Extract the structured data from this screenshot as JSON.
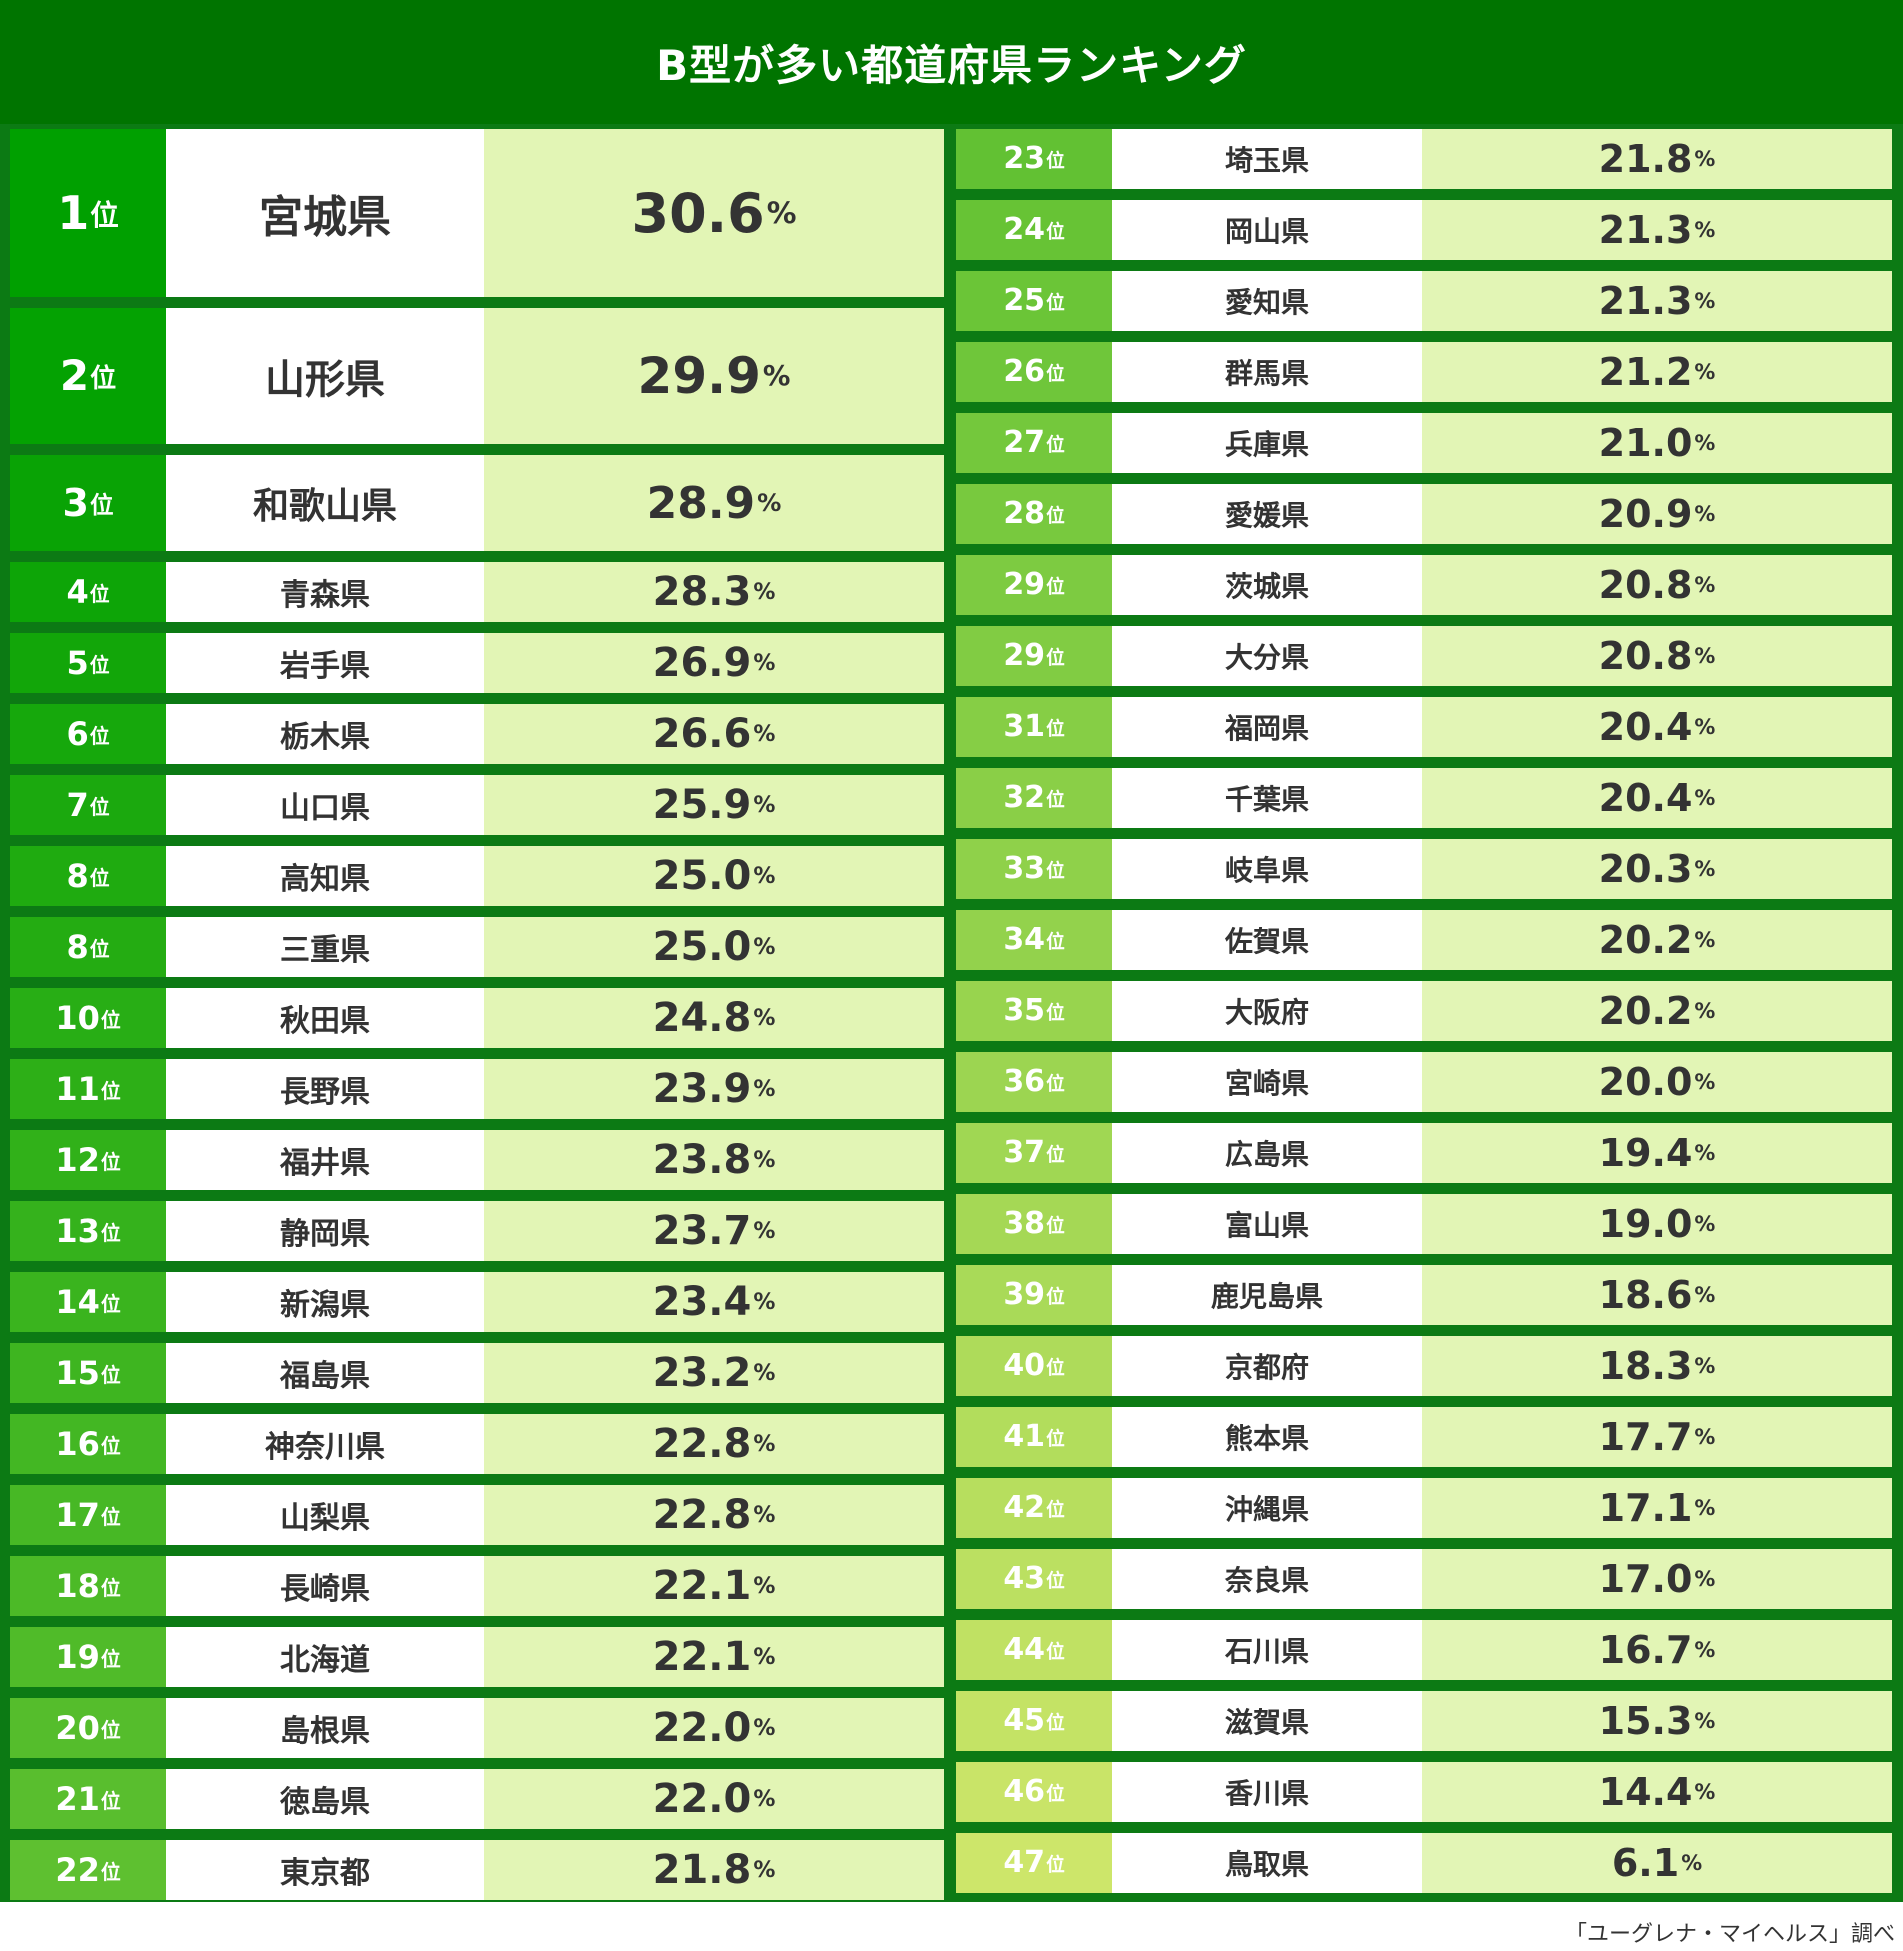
{
  "title": "B型が多い都道府県ランキング",
  "source": "「ユーグレナ・マイヘルス」調べ",
  "rank_unit": "位",
  "percent_unit": "%",
  "colors": {
    "header": "#007400",
    "rank_top": "#00a000",
    "rank_bottom": "#cde66a",
    "value_bg": "#e2f5b5"
  },
  "rankings": [
    {
      "rank": "1",
      "prefecture": "宮城県",
      "value": "30.6"
    },
    {
      "rank": "2",
      "prefecture": "山形県",
      "value": "29.9"
    },
    {
      "rank": "3",
      "prefecture": "和歌山県",
      "value": "28.9"
    },
    {
      "rank": "4",
      "prefecture": "青森県",
      "value": "28.3"
    },
    {
      "rank": "5",
      "prefecture": "岩手県",
      "value": "26.9"
    },
    {
      "rank": "6",
      "prefecture": "栃木県",
      "value": "26.6"
    },
    {
      "rank": "7",
      "prefecture": "山口県",
      "value": "25.9"
    },
    {
      "rank": "8",
      "prefecture": "高知県",
      "value": "25.0"
    },
    {
      "rank": "8",
      "prefecture": "三重県",
      "value": "25.0"
    },
    {
      "rank": "10",
      "prefecture": "秋田県",
      "value": "24.8"
    },
    {
      "rank": "11",
      "prefecture": "長野県",
      "value": "23.9"
    },
    {
      "rank": "12",
      "prefecture": "福井県",
      "value": "23.8"
    },
    {
      "rank": "13",
      "prefecture": "静岡県",
      "value": "23.7"
    },
    {
      "rank": "14",
      "prefecture": "新潟県",
      "value": "23.4"
    },
    {
      "rank": "15",
      "prefecture": "福島県",
      "value": "23.2"
    },
    {
      "rank": "16",
      "prefecture": "神奈川県",
      "value": "22.8"
    },
    {
      "rank": "17",
      "prefecture": "山梨県",
      "value": "22.8"
    },
    {
      "rank": "18",
      "prefecture": "長崎県",
      "value": "22.1"
    },
    {
      "rank": "19",
      "prefecture": "北海道",
      "value": "22.1"
    },
    {
      "rank": "20",
      "prefecture": "島根県",
      "value": "22.0"
    },
    {
      "rank": "21",
      "prefecture": "徳島県",
      "value": "22.0"
    },
    {
      "rank": "22",
      "prefecture": "東京都",
      "value": "21.8"
    },
    {
      "rank": "23",
      "prefecture": "埼玉県",
      "value": "21.8"
    },
    {
      "rank": "24",
      "prefecture": "岡山県",
      "value": "21.3"
    },
    {
      "rank": "25",
      "prefecture": "愛知県",
      "value": "21.3"
    },
    {
      "rank": "26",
      "prefecture": "群馬県",
      "value": "21.2"
    },
    {
      "rank": "27",
      "prefecture": "兵庫県",
      "value": "21.0"
    },
    {
      "rank": "28",
      "prefecture": "愛媛県",
      "value": "20.9"
    },
    {
      "rank": "29",
      "prefecture": "茨城県",
      "value": "20.8"
    },
    {
      "rank": "29",
      "prefecture": "大分県",
      "value": "20.8"
    },
    {
      "rank": "31",
      "prefecture": "福岡県",
      "value": "20.4"
    },
    {
      "rank": "32",
      "prefecture": "千葉県",
      "value": "20.4"
    },
    {
      "rank": "33",
      "prefecture": "岐阜県",
      "value": "20.3"
    },
    {
      "rank": "34",
      "prefecture": "佐賀県",
      "value": "20.2"
    },
    {
      "rank": "35",
      "prefecture": "大阪府",
      "value": "20.2"
    },
    {
      "rank": "36",
      "prefecture": "宮崎県",
      "value": "20.0"
    },
    {
      "rank": "37",
      "prefecture": "広島県",
      "value": "19.4"
    },
    {
      "rank": "38",
      "prefecture": "富山県",
      "value": "19.0"
    },
    {
      "rank": "39",
      "prefecture": "鹿児島県",
      "value": "18.6"
    },
    {
      "rank": "40",
      "prefecture": "京都府",
      "value": "18.3"
    },
    {
      "rank": "41",
      "prefecture": "熊本県",
      "value": "17.7"
    },
    {
      "rank": "42",
      "prefecture": "沖縄県",
      "value": "17.1"
    },
    {
      "rank": "43",
      "prefecture": "奈良県",
      "value": "17.0"
    },
    {
      "rank": "44",
      "prefecture": "石川県",
      "value": "16.7"
    },
    {
      "rank": "45",
      "prefecture": "滋賀県",
      "value": "15.3"
    },
    {
      "rank": "46",
      "prefecture": "香川県",
      "value": "14.4"
    },
    {
      "rank": "47",
      "prefecture": "鳥取県",
      "value": "6.1"
    }
  ]
}
